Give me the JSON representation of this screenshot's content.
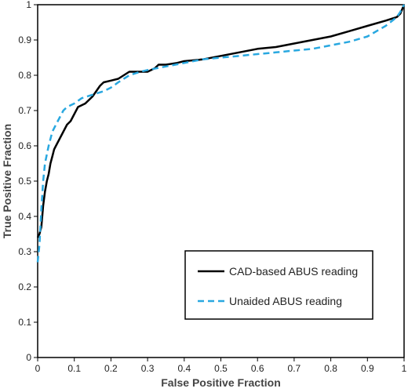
{
  "chart_data": {
    "type": "line",
    "title": "",
    "xlabel": "False Positive Fraction",
    "ylabel": "True Positive Fraction",
    "xlim": [
      0,
      1
    ],
    "ylim": [
      0,
      1
    ],
    "xticks": [
      "0",
      "0.1",
      "0.2",
      "0.3",
      "0.4",
      "0.5",
      "0.6",
      "0.7",
      "0.8",
      "0.9",
      "1"
    ],
    "yticks": [
      "0",
      "0.1",
      "0.2",
      "0.3",
      "0.4",
      "0.5",
      "0.6",
      "0.7",
      "0.8",
      "0.9",
      "1"
    ],
    "grid": false,
    "legend_position": "bottom-right",
    "series": [
      {
        "name": "CAD-based ABUS reading",
        "color": "#000000",
        "style": "solid",
        "x": [
          0,
          0.005,
          0.01,
          0.015,
          0.02,
          0.025,
          0.03,
          0.035,
          0.04,
          0.045,
          0.05,
          0.06,
          0.07,
          0.08,
          0.09,
          0.1,
          0.11,
          0.13,
          0.15,
          0.17,
          0.18,
          0.2,
          0.22,
          0.25,
          0.28,
          0.3,
          0.32,
          0.33,
          0.35,
          0.38,
          0.4,
          0.45,
          0.5,
          0.55,
          0.6,
          0.65,
          0.7,
          0.75,
          0.8,
          0.85,
          0.9,
          0.95,
          0.98,
          0.99,
          1.0
        ],
        "y": [
          0.34,
          0.35,
          0.37,
          0.43,
          0.47,
          0.5,
          0.52,
          0.55,
          0.57,
          0.59,
          0.6,
          0.62,
          0.64,
          0.66,
          0.67,
          0.69,
          0.71,
          0.72,
          0.74,
          0.77,
          0.78,
          0.785,
          0.79,
          0.81,
          0.81,
          0.81,
          0.82,
          0.83,
          0.83,
          0.835,
          0.84,
          0.845,
          0.855,
          0.865,
          0.875,
          0.88,
          0.89,
          0.9,
          0.91,
          0.925,
          0.94,
          0.955,
          0.965,
          0.975,
          1.0
        ]
      },
      {
        "name": "Unaided ABUS reading",
        "color": "#29a8e0",
        "style": "dashed",
        "x": [
          0,
          0.005,
          0.01,
          0.015,
          0.02,
          0.03,
          0.04,
          0.05,
          0.06,
          0.07,
          0.08,
          0.1,
          0.12,
          0.15,
          0.18,
          0.2,
          0.22,
          0.25,
          0.28,
          0.3,
          0.35,
          0.4,
          0.45,
          0.5,
          0.55,
          0.6,
          0.65,
          0.7,
          0.75,
          0.8,
          0.85,
          0.9,
          0.95,
          0.98,
          0.99,
          1.0
        ],
        "y": [
          0.27,
          0.32,
          0.42,
          0.5,
          0.55,
          0.6,
          0.64,
          0.66,
          0.68,
          0.7,
          0.71,
          0.72,
          0.735,
          0.745,
          0.755,
          0.765,
          0.78,
          0.8,
          0.81,
          0.815,
          0.825,
          0.835,
          0.845,
          0.85,
          0.855,
          0.86,
          0.865,
          0.87,
          0.875,
          0.885,
          0.895,
          0.91,
          0.94,
          0.965,
          0.98,
          1.0
        ]
      }
    ]
  }
}
